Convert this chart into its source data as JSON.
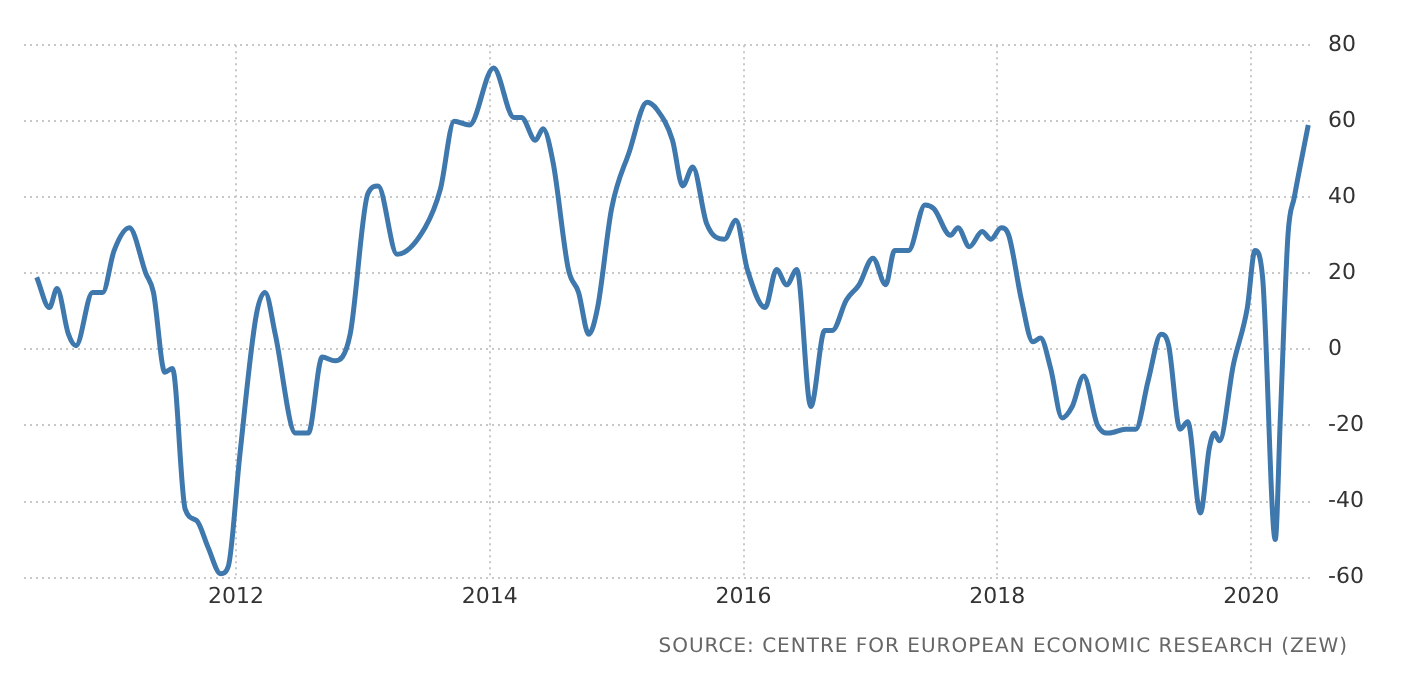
{
  "chart_data": {
    "type": "line",
    "annotations": [
      "SOURCE: CENTRE FOR EUROPEAN ECONOMIC RESEARCH (ZEW)"
    ],
    "xlim": [
      2010.33,
      2020.48
    ],
    "xticks": [
      2012,
      2014,
      2016,
      2018,
      2020
    ],
    "ylim": [
      -60,
      80
    ],
    "yticks": [
      -60,
      -40,
      -20,
      0,
      20,
      40,
      60,
      80
    ],
    "grid": true,
    "legend": false,
    "marker": "none",
    "line_style": "solid",
    "series": [
      {
        "color": "#3f78ad",
        "x": [
          2010.43,
          2010.53,
          2010.59,
          2010.68,
          2010.74,
          2010.87,
          2010.95,
          2011.04,
          2011.16,
          2011.29,
          2011.35,
          2011.44,
          2011.5,
          2011.6,
          2011.69,
          2011.78,
          2011.88,
          2011.94,
          2012.03,
          2012.16,
          2012.23,
          2012.31,
          2012.47,
          2012.57,
          2012.68,
          2012.78,
          2012.9,
          2013.04,
          2013.12,
          2013.27,
          2013.49,
          2013.61,
          2013.72,
          2013.84,
          2014.03,
          2014.19,
          2014.25,
          2014.36,
          2014.42,
          2014.5,
          2014.62,
          2014.7,
          2014.78,
          2014.85,
          2014.96,
          2015.1,
          2015.24,
          2015.32,
          2015.44,
          2015.52,
          2015.6,
          2015.71,
          2015.85,
          2015.94,
          2016.03,
          2016.17,
          2016.26,
          2016.34,
          2016.42,
          2016.53,
          2016.64,
          2016.7,
          2016.81,
          2016.91,
          2017.02,
          2017.12,
          2017.19,
          2017.3,
          2017.43,
          2017.5,
          2017.63,
          2017.69,
          2017.78,
          2017.88,
          2017.95,
          2018.03,
          2018.09,
          2018.19,
          2018.28,
          2018.34,
          2018.42,
          2018.51,
          2018.59,
          2018.68,
          2018.79,
          2018.88,
          2019.01,
          2019.09,
          2019.19,
          2019.29,
          2019.35,
          2019.44,
          2019.5,
          2019.6,
          2019.67,
          2019.71,
          2019.75,
          2019.86,
          2019.97,
          2020.03,
          2020.09,
          2020.19,
          2020.23,
          2020.29,
          2020.34,
          2020.45
        ],
        "values": [
          19,
          11,
          16,
          4,
          1,
          15,
          15,
          26,
          32,
          20,
          15,
          -6,
          -5,
          -42,
          -45,
          -52,
          -59,
          -57,
          -28,
          9,
          15,
          4,
          -22,
          -22,
          -2,
          -3,
          4,
          41,
          43,
          25,
          32,
          42,
          60,
          59,
          74,
          61,
          61,
          55,
          58,
          49,
          21,
          15,
          4,
          11,
          37,
          52,
          65,
          63,
          55,
          43,
          48,
          33,
          29,
          34,
          21,
          11,
          21,
          17,
          21,
          -15,
          5,
          5,
          13,
          17,
          24,
          17,
          26,
          26,
          38,
          37,
          30,
          32,
          27,
          31,
          29,
          32,
          30,
          13,
          2,
          3,
          -5,
          -18,
          -15,
          -7,
          -20,
          -22,
          -21,
          -21,
          -8,
          4,
          1,
          -21,
          -19,
          -43,
          -26,
          -22,
          -24,
          -4,
          11,
          26,
          19,
          -50,
          -18,
          30,
          40,
          59
        ]
      }
    ]
  }
}
